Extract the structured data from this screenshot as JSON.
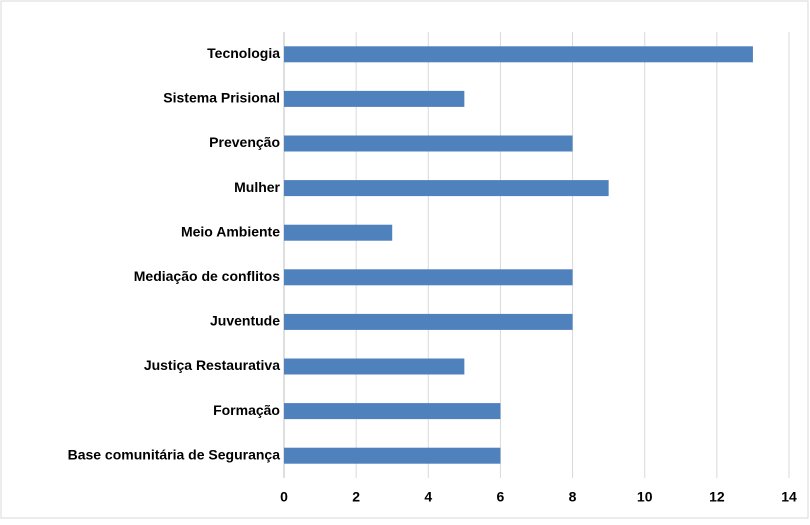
{
  "chart_data": {
    "type": "bar",
    "orientation": "horizontal",
    "categories": [
      "Tecnologia",
      "Sistema Prisional",
      "Prevenção",
      "Mulher",
      "Meio Ambiente",
      "Mediação de conflitos",
      "Juventude",
      "Justiça Restaurativa",
      "Formação",
      "Base comunitária de Segurança"
    ],
    "values": [
      13,
      5,
      8,
      9,
      3,
      8,
      8,
      5,
      6,
      6
    ],
    "color": "#4f81bd",
    "xlim": [
      0,
      14
    ],
    "xticks": [
      0,
      2,
      4,
      6,
      8,
      10,
      12,
      14
    ],
    "grid": true
  }
}
